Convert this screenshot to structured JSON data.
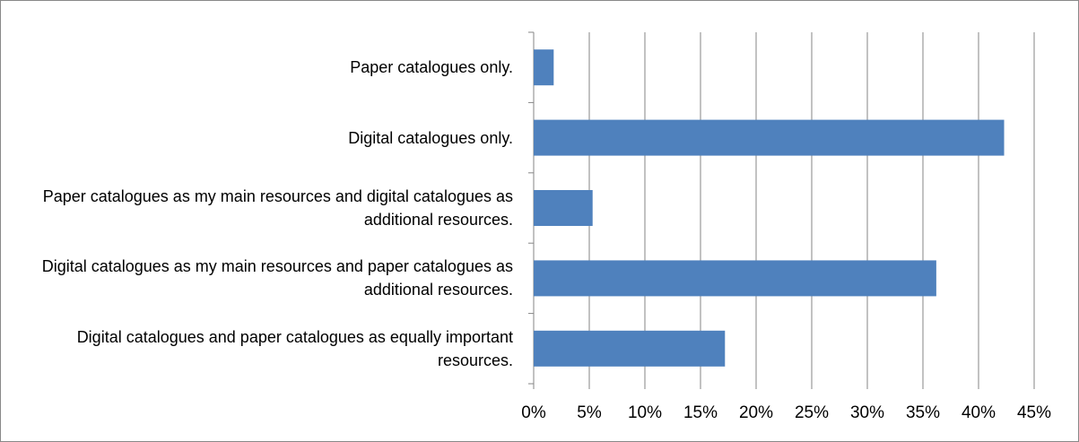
{
  "chart_data": {
    "type": "bar",
    "orientation": "horizontal",
    "categories": [
      "Paper catalogues only.",
      "Digital catalogues only.",
      "Paper catalogues as my main resources and digital catalogues as additional resources.",
      "Digital catalogues as my main resources and paper catalogues as additional resources.",
      "Digital catalogues and paper catalogues as equally important resources."
    ],
    "values": [
      1.8,
      42.3,
      5.3,
      36.2,
      17.2
    ],
    "color": "#4f81bd",
    "xlim": [
      0,
      45
    ],
    "xticks": [
      {
        "value": 0,
        "label": "0%"
      },
      {
        "value": 5,
        "label": "5%"
      },
      {
        "value": 10,
        "label": "10%"
      },
      {
        "value": 15,
        "label": "15%"
      },
      {
        "value": 20,
        "label": "20%"
      },
      {
        "value": 25,
        "label": "25%"
      },
      {
        "value": 30,
        "label": "30%"
      },
      {
        "value": 35,
        "label": "35%"
      },
      {
        "value": 40,
        "label": "40%"
      },
      {
        "value": 45,
        "label": "45%"
      }
    ],
    "grid": true
  }
}
